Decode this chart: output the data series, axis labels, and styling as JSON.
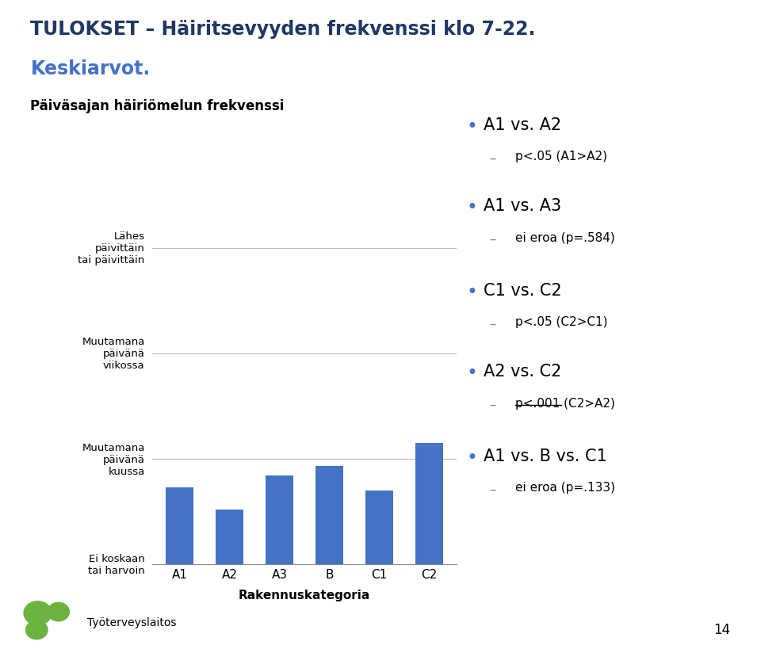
{
  "title_line1": "TULOKSET – Häiritsevyyden frekvenssi klo 7-22.",
  "title_line2": "Keskiarvot.",
  "subtitle": "Päiväsajan häiriömelun frekvenssi",
  "categories": [
    "A1",
    "A2",
    "A3",
    "B",
    "C1",
    "C2"
  ],
  "values": [
    1.73,
    1.52,
    1.84,
    1.93,
    1.7,
    2.15
  ],
  "bar_color": "#4472C4",
  "ylabel_ticks": [
    1,
    2,
    3,
    4
  ],
  "ylim": [
    1,
    4.2
  ],
  "xlabel": "Rakennuskategoria",
  "ytick_texts": [
    "Ei koskaan\ntai harvoin",
    "Muutamana\npäivänä\nkuussa",
    "Muutamana\npäivänä\nviikossa",
    "Lähes\npäivittäin\ntai päivittäin"
  ],
  "background_color": "#ffffff",
  "title_color": "#1F3864",
  "title2_color": "#4472C4",
  "bullet_color": "#4472C4",
  "dash_color": "#888888",
  "right_panel": [
    {
      "bullet": "A1 vs. A2",
      "sub": "p<.05 (A1>A2)",
      "sub_underline": false
    },
    {
      "bullet": "A1 vs. A3",
      "sub": "ei eroa (p=.584)",
      "sub_underline": false
    },
    {
      "bullet": "C1 vs. C2",
      "sub": "p<.05 (C2>C1)",
      "sub_underline": false
    },
    {
      "bullet": "A2 vs. C2",
      "sub": "p<.001 (C2>A2)",
      "sub_underline": true
    },
    {
      "bullet": "A1 vs. B vs. C1",
      "sub": "ei eroa (p=.133)",
      "sub_underline": false
    }
  ],
  "page_number": "14",
  "logo_color": "#6DB33F",
  "footer_text": "Työterveyslaitos"
}
